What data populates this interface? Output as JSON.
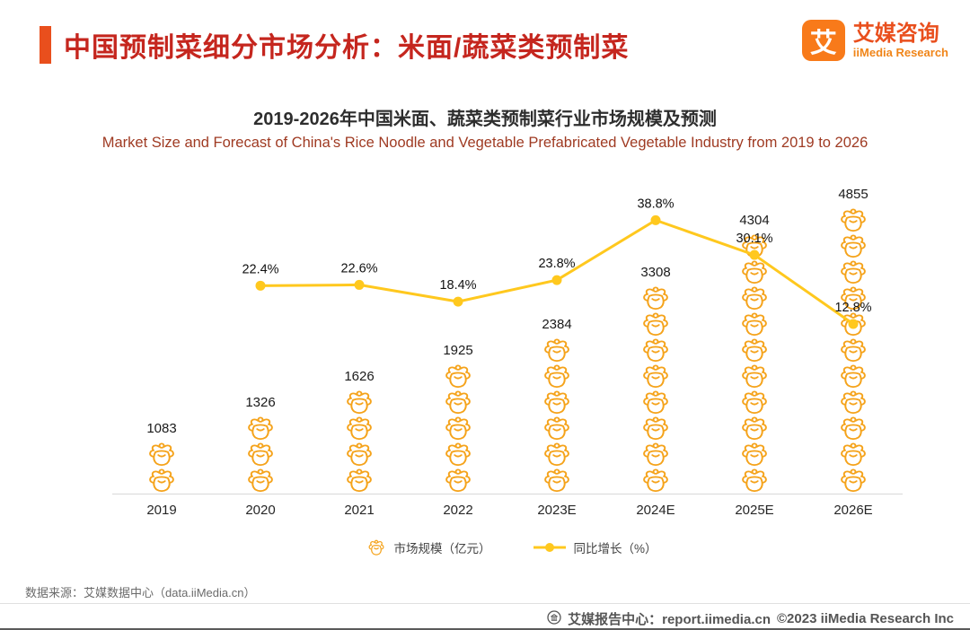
{
  "header": {
    "title": "中国预制菜细分市场分析：米面/蔬菜类预制菜",
    "logo": {
      "glyph": "艾",
      "name": "艾媒咨询",
      "subtitle": "iiMedia Research"
    }
  },
  "chart": {
    "title_cn": "2019-2026年中国米面、蔬菜类预制菜行业市场规模及预测",
    "title_en": "Market Size and Forecast of China's Rice Noodle and Vegetable Prefabricated Vegetable Industry from 2019 to 2026"
  },
  "chart_data": {
    "type": "pictorial-bar+line",
    "categories": [
      "2019",
      "2020",
      "2021",
      "2022",
      "2023E",
      "2024E",
      "2025E",
      "2026E"
    ],
    "series": [
      {
        "name": "市场规模（亿元）",
        "type": "pictorial-bar",
        "unit": "亿元",
        "values": [
          1083,
          1326,
          1626,
          1925,
          2384,
          3308,
          4304,
          4855
        ],
        "icon_counts": [
          2,
          3,
          4,
          5,
          6,
          8,
          10,
          11
        ],
        "color": "#F5A31B"
      },
      {
        "name": "同比增长（%）",
        "type": "line",
        "unit": "%",
        "values": [
          null,
          22.4,
          22.6,
          18.4,
          23.8,
          38.8,
          30.1,
          12.8
        ],
        "color": "#FFC81E"
      }
    ],
    "value_axis": {
      "min": 0,
      "max": 5000
    },
    "percent_axis": {
      "min": 0,
      "max": 50
    },
    "grid": false,
    "legend_position": "bottom"
  },
  "colors": {
    "brand_red": "#C5261E",
    "accent_orange": "#E94F1D",
    "icon_orange": "#F5A31B",
    "line_yellow": "#FFC81E"
  },
  "footer": {
    "source": "数据来源：艾媒数据中心（data.iiMedia.cn）",
    "report": "艾媒报告中心：report.iimedia.cn",
    "copyright": "©2023  iiMedia Research Inc"
  }
}
